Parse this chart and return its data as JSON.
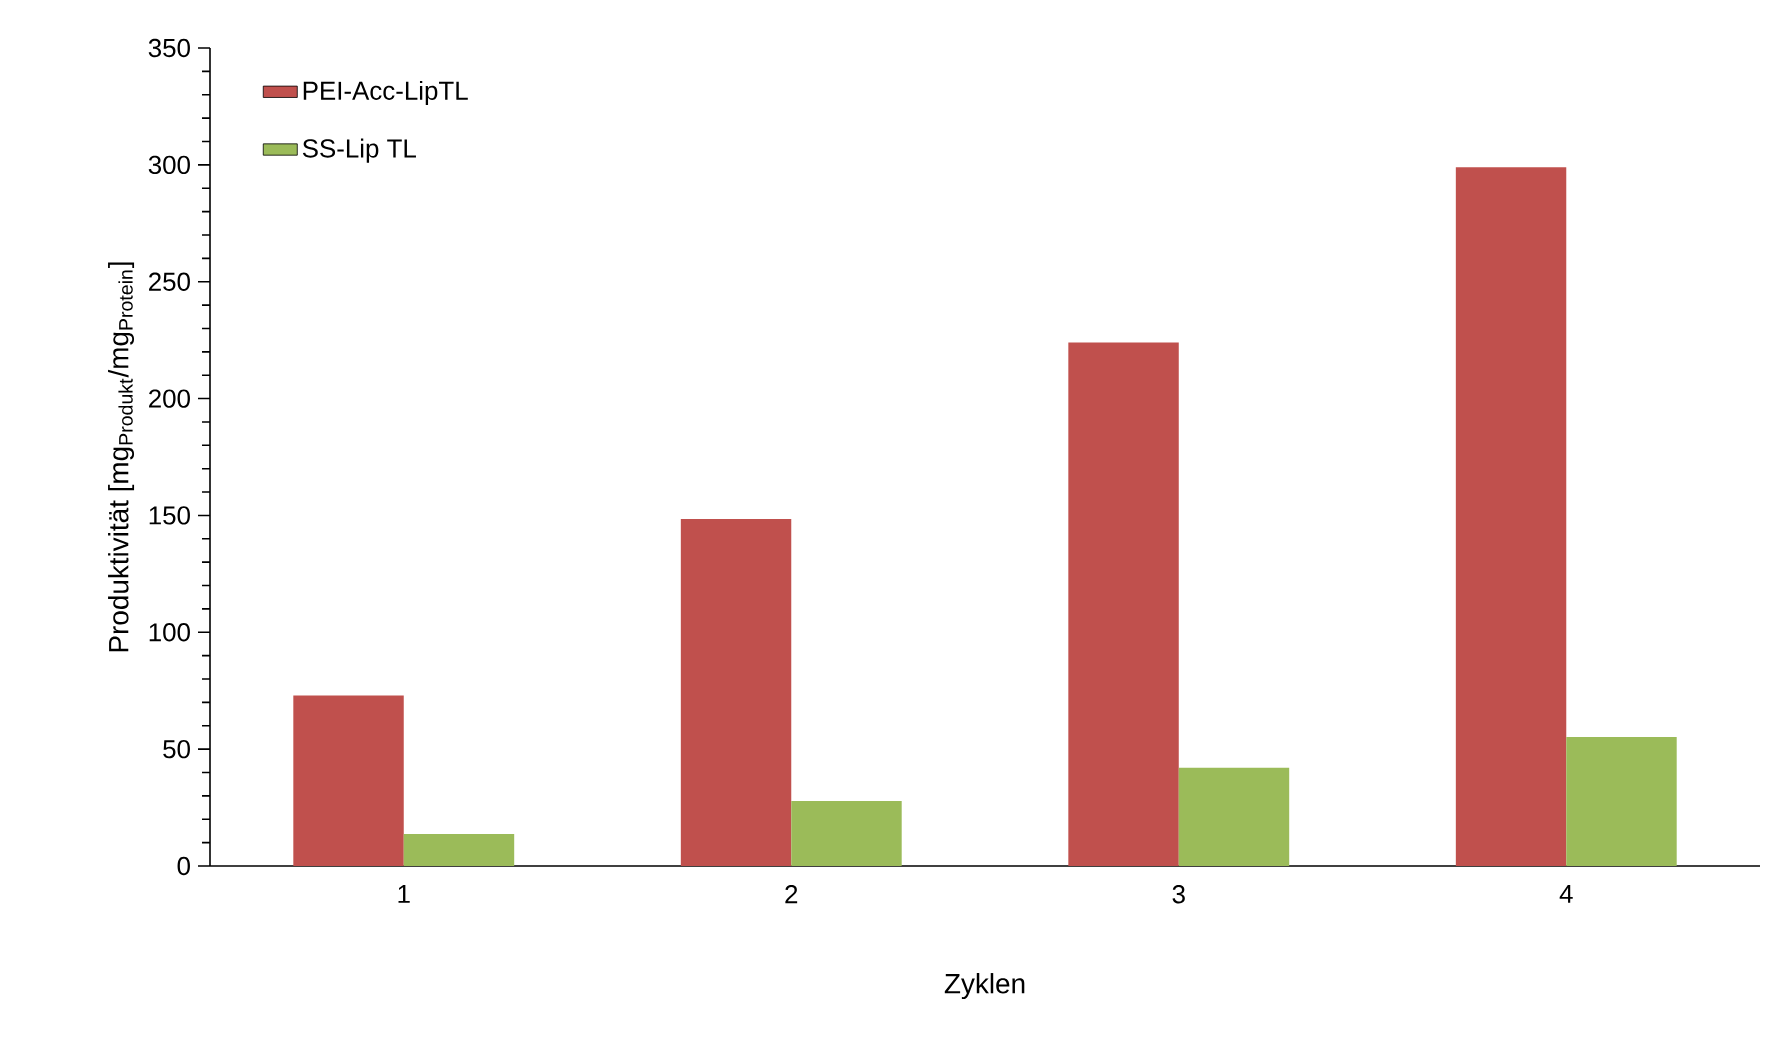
{
  "chart_data": {
    "type": "bar",
    "xlabel": "Zyklen",
    "ylabel": "Produktivität [mg$_{Produkt}$/mg$_{Protein}$]",
    "categories": [
      "1",
      "2",
      "3",
      "4"
    ],
    "series": [
      {
        "name": "PEI-Acc-LipTL",
        "color": "#c0504d",
        "values": [
          73,
          148.5,
          224,
          299
        ]
      },
      {
        "name": "SS-Lip TL",
        "color": "#9bbb59",
        "values": [
          13.7,
          27.8,
          42,
          55.2
        ]
      }
    ],
    "ylim": [
      0,
      350
    ],
    "yticks": [
      0,
      50,
      100,
      150,
      200,
      250,
      300,
      350
    ],
    "grid": false,
    "legend": "top left"
  }
}
